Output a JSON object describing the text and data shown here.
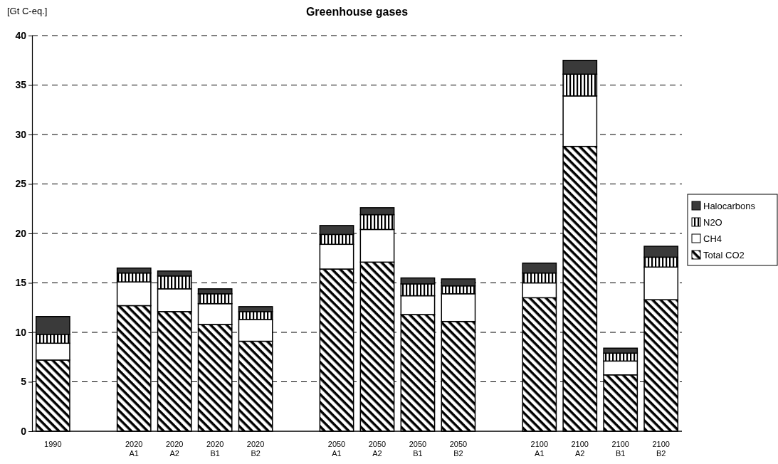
{
  "chart_data": {
    "type": "bar",
    "title": "Greenhouse gases",
    "ylabel": "[Gt C-eq.]",
    "categories": [
      "1990",
      null,
      "2020\nA1",
      "2020\nA2",
      "2020\nB1",
      "2020\nB2",
      null,
      "2050\nA1",
      "2050\nA2",
      "2050\nB1",
      "2050\nB2",
      null,
      "2100\nA1",
      "2100\nA2",
      "2100\nB1",
      "2100\nB2"
    ],
    "stacked": true,
    "series": [
      {
        "name": "Total CO2",
        "color": "#000000",
        "values": [
          7.2,
          null,
          12.7,
          12.1,
          10.8,
          9.1,
          null,
          16.4,
          17.1,
          11.8,
          11.1,
          null,
          13.5,
          28.8,
          5.7,
          13.3
        ]
      },
      {
        "name": "CH4",
        "color": "#ffffff",
        "values": [
          1.7,
          null,
          2.4,
          2.3,
          2.1,
          2.2,
          null,
          2.5,
          3.3,
          1.9,
          2.8,
          null,
          1.5,
          5.1,
          1.4,
          3.3
        ]
      },
      {
        "name": "N2O",
        "color": "#000000",
        "values": [
          0.9,
          null,
          0.9,
          1.3,
          1.0,
          0.8,
          null,
          1.0,
          1.5,
          1.2,
          0.8,
          null,
          1.0,
          2.2,
          0.8,
          1.0
        ]
      },
      {
        "name": "Halocarbons",
        "color": "#3a3a3a",
        "values": [
          1.8,
          null,
          0.5,
          0.5,
          0.5,
          0.5,
          null,
          0.9,
          0.7,
          0.6,
          0.7,
          null,
          1.0,
          1.4,
          0.5,
          1.1
        ]
      }
    ],
    "ylim": [
      0,
      40
    ],
    "yticks": [
      0,
      5,
      10,
      15,
      20,
      25,
      30,
      35,
      40
    ],
    "grid": "y",
    "legend": "right"
  }
}
